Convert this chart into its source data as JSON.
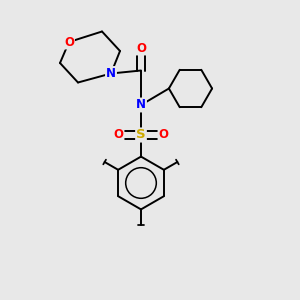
{
  "bg_color": "#e8e8e8",
  "atom_colors": {
    "C": "#000000",
    "N": "#0000ff",
    "O": "#ff0000",
    "S": "#ccaa00"
  },
  "bond_color": "#000000",
  "bond_width": 1.4,
  "fig_size": [
    3.0,
    3.0
  ],
  "dpi": 100,
  "xlim": [
    0,
    10
  ],
  "ylim": [
    0,
    10
  ]
}
